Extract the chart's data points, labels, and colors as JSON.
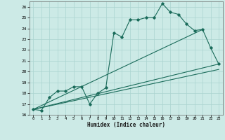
{
  "xlabel": "Humidex (Indice chaleur)",
  "background_color": "#cceae6",
  "grid_color": "#aad4d0",
  "line_color": "#1a6b5a",
  "xlim": [
    -0.5,
    23.5
  ],
  "ylim": [
    16,
    26.5
  ],
  "xticks": [
    0,
    1,
    2,
    3,
    4,
    5,
    6,
    7,
    8,
    9,
    10,
    11,
    12,
    13,
    14,
    15,
    16,
    17,
    18,
    19,
    20,
    21,
    22,
    23
  ],
  "yticks": [
    16,
    17,
    18,
    19,
    20,
    21,
    22,
    23,
    24,
    25,
    26
  ],
  "series1_x": [
    0,
    1,
    2,
    3,
    4,
    5,
    6,
    7,
    8,
    9,
    10,
    11,
    12,
    13,
    14,
    15,
    16,
    17,
    18,
    19,
    20,
    21,
    22,
    23
  ],
  "series1_y": [
    16.5,
    16.4,
    17.6,
    18.2,
    18.2,
    18.6,
    18.6,
    17.0,
    18.0,
    18.5,
    23.6,
    23.2,
    24.8,
    24.8,
    25.0,
    25.0,
    26.3,
    25.5,
    25.3,
    24.4,
    23.8,
    23.9,
    22.2,
    20.7
  ],
  "series2_x": [
    0,
    23
  ],
  "series2_y": [
    16.5,
    20.7
  ],
  "series3_x": [
    0,
    21
  ],
  "series3_y": [
    16.5,
    23.9
  ],
  "series4_x": [
    0,
    23
  ],
  "series4_y": [
    16.5,
    20.2
  ]
}
